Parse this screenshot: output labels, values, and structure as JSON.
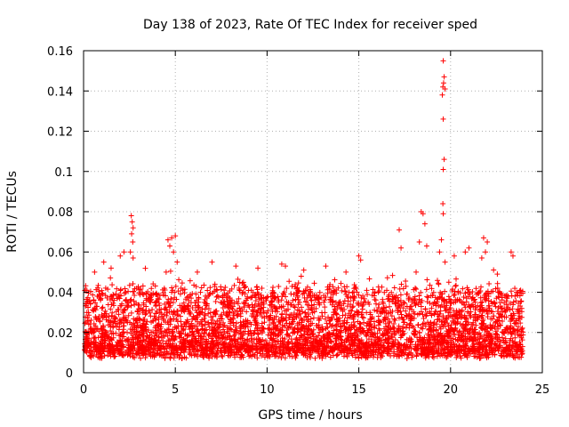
{
  "chart_data": {
    "type": "scatter",
    "title": "Day 138 of 2023, Rate Of TEC Index for receiver sped",
    "xlabel": "GPS time / hours",
    "ylabel": "ROTI / TECUs",
    "xlim": [
      0,
      25
    ],
    "ylim": [
      0,
      0.16
    ],
    "xticks": [
      0,
      5,
      10,
      15,
      20,
      25
    ],
    "yticks": [
      0,
      0.02,
      0.04,
      0.06,
      0.08,
      0.1,
      0.12,
      0.14,
      0.16
    ],
    "xtick_labels": [
      "0",
      "5",
      "10",
      "15",
      "20",
      "25"
    ],
    "ytick_labels": [
      "0",
      "0.02",
      "0.04",
      "0.06",
      "0.08",
      "0.1",
      "0.12",
      "0.14",
      "0.16"
    ],
    "grid": true,
    "marker": "+",
    "colors": {
      "series": "#ff0000",
      "grid": "#b0b0b0",
      "axis": "#000000"
    },
    "series": [
      {
        "name": "ROTI",
        "points": [
          [
            2.6,
            0.078
          ],
          [
            2.65,
            0.075
          ],
          [
            2.7,
            0.072
          ],
          [
            2.62,
            0.069
          ],
          [
            2.68,
            0.065
          ],
          [
            2.55,
            0.06
          ],
          [
            2.7,
            0.057
          ],
          [
            4.6,
            0.066
          ],
          [
            4.8,
            0.067
          ],
          [
            5.0,
            0.068
          ],
          [
            4.7,
            0.063
          ],
          [
            4.9,
            0.06
          ],
          [
            4.5,
            0.05
          ],
          [
            5.1,
            0.055
          ],
          [
            1.1,
            0.055
          ],
          [
            1.5,
            0.052
          ],
          [
            2.0,
            0.058
          ],
          [
            2.2,
            0.06
          ],
          [
            0.6,
            0.05
          ],
          [
            17.2,
            0.071
          ],
          [
            17.3,
            0.062
          ],
          [
            18.4,
            0.08
          ],
          [
            18.5,
            0.079
          ],
          [
            18.6,
            0.074
          ],
          [
            18.3,
            0.065
          ],
          [
            18.7,
            0.063
          ],
          [
            19.6,
            0.155
          ],
          [
            19.65,
            0.147
          ],
          [
            19.62,
            0.144
          ],
          [
            19.58,
            0.142
          ],
          [
            19.7,
            0.141
          ],
          [
            19.55,
            0.138
          ],
          [
            19.6,
            0.126
          ],
          [
            19.65,
            0.106
          ],
          [
            19.6,
            0.101
          ],
          [
            19.58,
            0.084
          ],
          [
            19.6,
            0.079
          ],
          [
            19.5,
            0.066
          ],
          [
            19.4,
            0.06
          ],
          [
            19.7,
            0.055
          ],
          [
            20.2,
            0.058
          ],
          [
            20.8,
            0.06
          ],
          [
            21.0,
            0.062
          ],
          [
            21.8,
            0.067
          ],
          [
            22.0,
            0.065
          ],
          [
            21.9,
            0.06
          ],
          [
            21.7,
            0.057
          ],
          [
            23.3,
            0.06
          ],
          [
            23.4,
            0.058
          ],
          [
            15.0,
            0.058
          ],
          [
            15.1,
            0.056
          ],
          [
            10.8,
            0.054
          ],
          [
            11.0,
            0.053
          ],
          [
            7.0,
            0.055
          ],
          [
            8.3,
            0.053
          ],
          [
            9.5,
            0.052
          ],
          [
            13.2,
            0.053
          ],
          [
            6.2,
            0.05
          ],
          [
            12.0,
            0.051
          ],
          [
            14.3,
            0.05
          ]
        ]
      }
    ]
  }
}
